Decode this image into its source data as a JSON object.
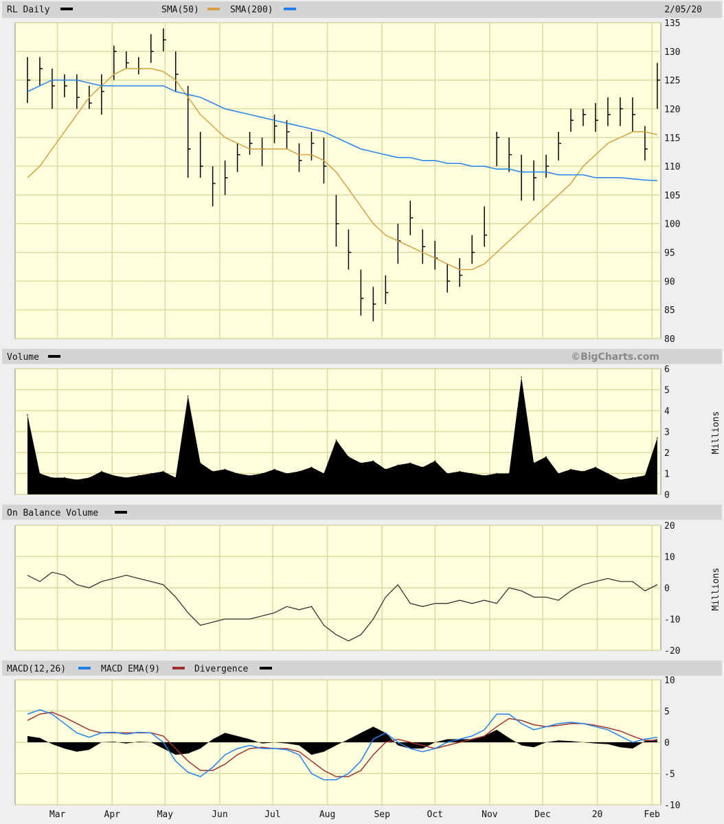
{
  "header": {
    "symbol_label": "RL Daily",
    "date": "2/05/20",
    "sma50_label": "SMA(50)",
    "sma200_label": "SMA(200)"
  },
  "volume_panel": {
    "label": "Volume",
    "brand": "©BigCharts.com",
    "unit": "Millions"
  },
  "obv_panel": {
    "label": "On Balance Volume",
    "unit": "Millions"
  },
  "macd_panel": {
    "label_macd": "MACD(12,26)",
    "label_ema": "MACD EMA(9)",
    "label_div": "Divergence"
  },
  "colors": {
    "price": "#000000",
    "sma50": "#d4a040",
    "sma200": "#2080f0",
    "macd": "#2080f0",
    "macd_ema": "#a03030",
    "divergence": "#000000",
    "plot_bg": "#ffffdd",
    "grid": "#d8d8a0"
  },
  "chart_data": [
    {
      "type": "ohlc",
      "panel": "price",
      "x_range": [
        "2019-02-05",
        "2020-02-06"
      ],
      "ylim": [
        80,
        135
      ],
      "yticks": [
        80,
        85,
        90,
        95,
        100,
        105,
        110,
        115,
        120,
        125,
        130,
        135
      ],
      "xticks": [
        {
          "date": "2019-03-01",
          "label": "Mar"
        },
        {
          "date": "2019-04-01",
          "label": "Apr"
        },
        {
          "date": "2019-05-01",
          "label": "May"
        },
        {
          "date": "2019-06-01",
          "label": "Jun"
        },
        {
          "date": "2019-07-01",
          "label": "Jul"
        },
        {
          "date": "2019-08-01",
          "label": "Aug"
        },
        {
          "date": "2019-09-01",
          "label": "Sep"
        },
        {
          "date": "2019-10-01",
          "label": "Oct"
        },
        {
          "date": "2019-11-01",
          "label": "Nov"
        },
        {
          "date": "2019-12-01",
          "label": "Dec"
        },
        {
          "date": "2020-01-01",
          "label": "20"
        },
        {
          "date": "2020-02-01",
          "label": "Feb"
        }
      ],
      "grid": true,
      "start_date": "2019-02-12",
      "interval_days": 7,
      "hlc": [
        [
          129,
          121,
          125
        ],
        [
          129,
          124,
          127
        ],
        [
          127,
          120,
          124
        ],
        [
          126,
          122,
          124
        ],
        [
          126,
          120,
          122
        ],
        [
          124,
          120,
          121
        ],
        [
          126,
          119,
          123
        ],
        [
          131,
          125,
          130
        ],
        [
          130,
          127,
          128
        ],
        [
          129,
          126,
          127
        ],
        [
          133,
          128,
          130
        ],
        [
          134,
          130,
          132
        ],
        [
          130,
          123,
          126
        ],
        [
          124,
          108,
          113
        ],
        [
          116,
          108,
          110
        ],
        [
          110,
          103,
          107
        ],
        [
          111,
          105,
          108
        ],
        [
          114,
          109,
          112
        ],
        [
          116,
          112,
          114
        ],
        [
          115,
          110,
          113
        ],
        [
          119,
          114,
          117
        ],
        [
          118,
          113,
          116
        ],
        [
          114,
          109,
          111
        ],
        [
          116,
          111,
          114
        ],
        [
          115,
          107,
          110
        ],
        [
          105,
          96,
          100
        ],
        [
          99,
          92,
          95
        ],
        [
          92,
          84,
          87
        ],
        [
          89,
          83,
          86
        ],
        [
          91,
          86,
          88
        ],
        [
          100,
          93,
          97
        ],
        [
          104,
          98,
          101
        ],
        [
          99,
          93,
          96
        ],
        [
          97,
          92,
          94
        ],
        [
          93,
          88,
          90
        ],
        [
          94,
          89,
          91
        ],
        [
          98,
          93,
          95
        ],
        [
          103,
          96,
          98
        ],
        [
          116,
          110,
          115
        ],
        [
          115,
          109,
          112
        ],
        [
          112,
          104,
          109
        ],
        [
          111,
          104,
          108
        ],
        [
          112,
          108,
          110
        ],
        [
          116,
          111,
          114
        ],
        [
          120,
          116,
          118
        ],
        [
          120,
          117,
          119
        ],
        [
          121,
          116,
          118
        ],
        [
          122,
          117,
          119
        ],
        [
          122,
          117,
          120
        ],
        [
          122,
          116,
          119
        ],
        [
          117,
          111,
          113
        ],
        [
          128,
          120,
          125
        ]
      ],
      "series": [
        {
          "name": "SMA(50)",
          "values": [
            108,
            110,
            113,
            116,
            119,
            122,
            124,
            126,
            127,
            127,
            127,
            126.5,
            125,
            122,
            119,
            117,
            115,
            114,
            113,
            113,
            113,
            113,
            112,
            112,
            111,
            109,
            106,
            103,
            100,
            98,
            97,
            96,
            95,
            94,
            93,
            92,
            92,
            93,
            95,
            97,
            99,
            101,
            103,
            105,
            107,
            110,
            112,
            114,
            115,
            116,
            116,
            115.5
          ]
        },
        {
          "name": "SMA(200)",
          "values": [
            123,
            124,
            125,
            125,
            125,
            124.5,
            124,
            124,
            124,
            124,
            124,
            124,
            123,
            122.5,
            122,
            121,
            120,
            119.5,
            119,
            118.5,
            118,
            117.5,
            117,
            116.5,
            116,
            115,
            114,
            113,
            112.5,
            112,
            111.5,
            111.5,
            111,
            111,
            110.5,
            110.5,
            110,
            110,
            109.5,
            109.5,
            109,
            109,
            109,
            108.5,
            108.5,
            108.5,
            108,
            108,
            108,
            107.8,
            107.6,
            107.5
          ]
        }
      ]
    },
    {
      "type": "area",
      "panel": "volume",
      "ylabel": "Millions",
      "ylim": [
        0,
        6
      ],
      "yticks": [
        0,
        1,
        2,
        3,
        4,
        5,
        6
      ],
      "values": [
        3.8,
        1.0,
        0.8,
        0.8,
        0.7,
        0.8,
        1.1,
        0.9,
        0.8,
        0.9,
        1.0,
        1.1,
        0.8,
        4.7,
        1.5,
        1.1,
        1.2,
        1.0,
        0.9,
        1.0,
        1.2,
        1.0,
        1.1,
        1.3,
        1.0,
        2.6,
        1.8,
        1.5,
        1.6,
        1.2,
        1.4,
        1.5,
        1.3,
        1.6,
        1.0,
        1.1,
        1.0,
        0.9,
        1.0,
        1.0,
        5.6,
        1.5,
        1.8,
        1.0,
        1.2,
        1.1,
        1.3,
        1.0,
        0.7,
        0.8,
        0.9,
        2.7
      ]
    },
    {
      "type": "line",
      "panel": "obv",
      "ylabel": "Millions",
      "ylim": [
        -20,
        20
      ],
      "yticks": [
        -20,
        -10,
        0,
        10,
        20
      ],
      "values": [
        4,
        2,
        5,
        4,
        1,
        0,
        2,
        3,
        4,
        3,
        2,
        1,
        -3,
        -8,
        -12,
        -11,
        -10,
        -10,
        -10,
        -9,
        -8,
        -6,
        -7,
        -6,
        -12,
        -15,
        -17,
        -15,
        -10,
        -3,
        1,
        -5,
        -6,
        -5,
        -5,
        -4,
        -5,
        -4,
        -5,
        0,
        -1,
        -3,
        -3,
        -4,
        -1,
        1,
        2,
        3,
        2,
        2,
        -1,
        1
      ]
    },
    {
      "type": "line",
      "panel": "macd",
      "ylim": [
        -10,
        10
      ],
      "yticks": [
        -10,
        -5,
        0,
        5,
        10
      ],
      "series": [
        {
          "name": "MACD(12,26)",
          "values": [
            4.5,
            5.2,
            4.5,
            3,
            1.5,
            0.8,
            1.5,
            1.6,
            1.3,
            1.6,
            1.5,
            0,
            -3,
            -4.8,
            -5.5,
            -4,
            -2,
            -1,
            -0.5,
            -1,
            -1,
            -1.2,
            -2,
            -5,
            -6,
            -6,
            -5,
            -3,
            0.5,
            1.5,
            0,
            -1,
            -1.5,
            -1,
            0,
            0.5,
            1,
            2,
            4.5,
            4.5,
            3,
            2,
            2.5,
            3,
            3.2,
            3,
            2.5,
            2,
            1,
            0,
            0.5,
            0.8
          ]
        },
        {
          "name": "MACD EMA(9)",
          "values": [
            3.5,
            4.5,
            4.8,
            4,
            3,
            2,
            1.5,
            1.5,
            1.5,
            1.5,
            1.5,
            1,
            -1,
            -3,
            -4.5,
            -4.5,
            -3.5,
            -2,
            -1,
            -0.8,
            -1,
            -1,
            -1.5,
            -3,
            -4.5,
            -5.5,
            -5.5,
            -4.5,
            -2,
            0,
            0.5,
            0,
            -0.5,
            -1,
            -0.5,
            0,
            0.5,
            1,
            2.5,
            3.8,
            3.5,
            2.8,
            2.5,
            2.7,
            3,
            3,
            2.7,
            2.3,
            1.8,
            1,
            0.3,
            0.3
          ]
        }
      ]
    }
  ]
}
